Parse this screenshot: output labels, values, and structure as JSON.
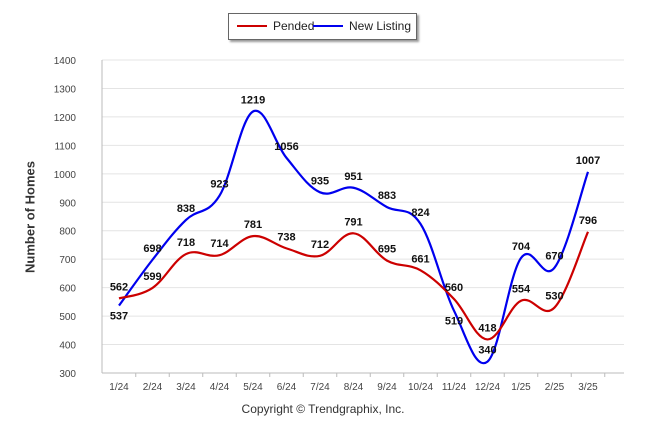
{
  "legend": {
    "pended": "Pended",
    "new_listing": "New Listing"
  },
  "copyright": "Copyright © Trendgraphix, Inc.",
  "chart_data": {
    "type": "line",
    "ylabel": "Number of Homes",
    "xlabel": "",
    "ylim": [
      300,
      1400
    ],
    "yticks": [
      300,
      400,
      500,
      600,
      700,
      800,
      900,
      1000,
      1100,
      1200,
      1300,
      1400
    ],
    "categories": [
      "1/24",
      "2/24",
      "3/24",
      "4/24",
      "5/24",
      "6/24",
      "7/24",
      "8/24",
      "9/24",
      "10/24",
      "11/24",
      "12/24",
      "1/25",
      "2/25",
      "3/25"
    ],
    "series": [
      {
        "name": "Pended",
        "color": "#cc0000",
        "values": [
          562,
          599,
          718,
          714,
          781,
          738,
          712,
          791,
          695,
          661,
          560,
          418,
          554,
          530,
          796
        ]
      },
      {
        "name": "New Listing",
        "color": "#0000ee",
        "values": [
          537,
          698,
          838,
          923,
          1219,
          1056,
          935,
          951,
          883,
          824,
          519,
          340,
          704,
          670,
          1007
        ]
      }
    ],
    "grid": true,
    "legend_position": "top-center"
  }
}
